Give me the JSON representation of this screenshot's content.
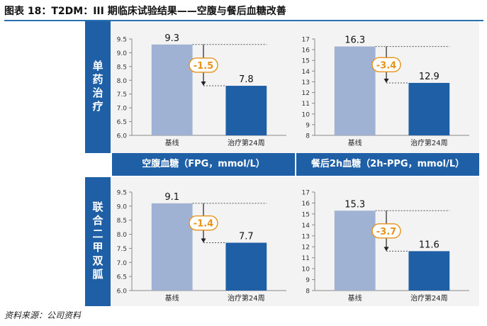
{
  "figure": {
    "title": "图表 18：T2DM：III 期临床试验结果——空腹与餐后血糖改善",
    "source": "资料来源：公司资料"
  },
  "rows": [
    {
      "label": "单药治疗"
    },
    {
      "label": "联合二甲双胍"
    }
  ],
  "columns": [
    {
      "label": "空腹血糖（FPG，mmol/L）"
    },
    {
      "label": "餐后2h血糖（2h-PPG，mmol/L）"
    }
  ],
  "colors": {
    "baseline": "#9fb2d3",
    "treat": "#1f5fa6",
    "delta": "#e8921a",
    "band": "#1f5fa6"
  },
  "chart_data": [
    {
      "type": "bar",
      "categories": [
        "基线",
        "治疗第24周"
      ],
      "values": [
        9.3,
        7.8
      ],
      "delta_label": "-1.5",
      "ylim": [
        6.0,
        9.5
      ],
      "ticks": [
        "6.0",
        "6.5",
        "7.0",
        "7.5",
        "8.0",
        "8.5",
        "9.0",
        "9.5"
      ]
    },
    {
      "type": "bar",
      "categories": [
        "基线",
        "治疗第24周"
      ],
      "values": [
        16.3,
        12.9
      ],
      "delta_label": "-3.4",
      "ylim": [
        8,
        17
      ],
      "ticks": [
        "8",
        "9",
        "10",
        "11",
        "12",
        "13",
        "14",
        "15",
        "16",
        "17"
      ]
    },
    {
      "type": "bar",
      "categories": [
        "基线",
        "治疗第24周"
      ],
      "values": [
        9.1,
        7.7
      ],
      "delta_label": "-1.4",
      "ylim": [
        6.0,
        9.5
      ],
      "ticks": [
        "6.0",
        "6.5",
        "7.0",
        "7.5",
        "8.0",
        "8.5",
        "9.0",
        "9.5"
      ]
    },
    {
      "type": "bar",
      "categories": [
        "基线",
        "治疗第24周"
      ],
      "values": [
        15.3,
        11.6
      ],
      "delta_label": "-3.7",
      "ylim": [
        8,
        17
      ],
      "ticks": [
        "8",
        "9",
        "10",
        "11",
        "12",
        "13",
        "14",
        "15",
        "16",
        "17"
      ]
    }
  ]
}
